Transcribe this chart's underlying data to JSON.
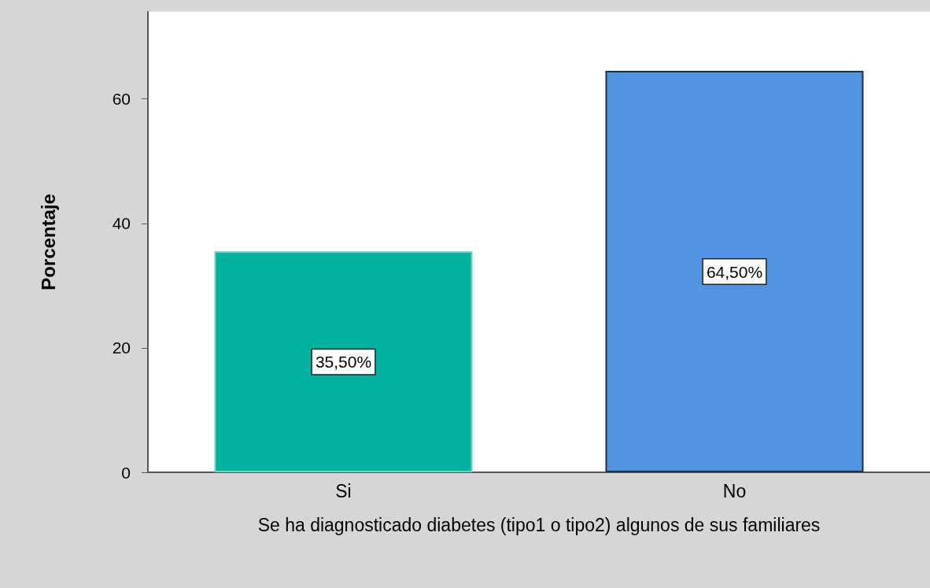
{
  "chart_data": {
    "type": "bar",
    "xlabel": "Se ha diagnosticado diabetes (tipo1 o tipo2) algunos de sus familiares",
    "ylabel": "Porcentaje",
    "categories": [
      "Si",
      "No"
    ],
    "values": [
      35.5,
      64.5
    ],
    "colors": [
      "#00b39f",
      "#5394e2"
    ],
    "value_labels": [
      "35,50%",
      "64,50%"
    ],
    "ylim": [
      0,
      74
    ],
    "yticks": [
      0,
      20,
      40,
      60
    ],
    "grid": false
  }
}
